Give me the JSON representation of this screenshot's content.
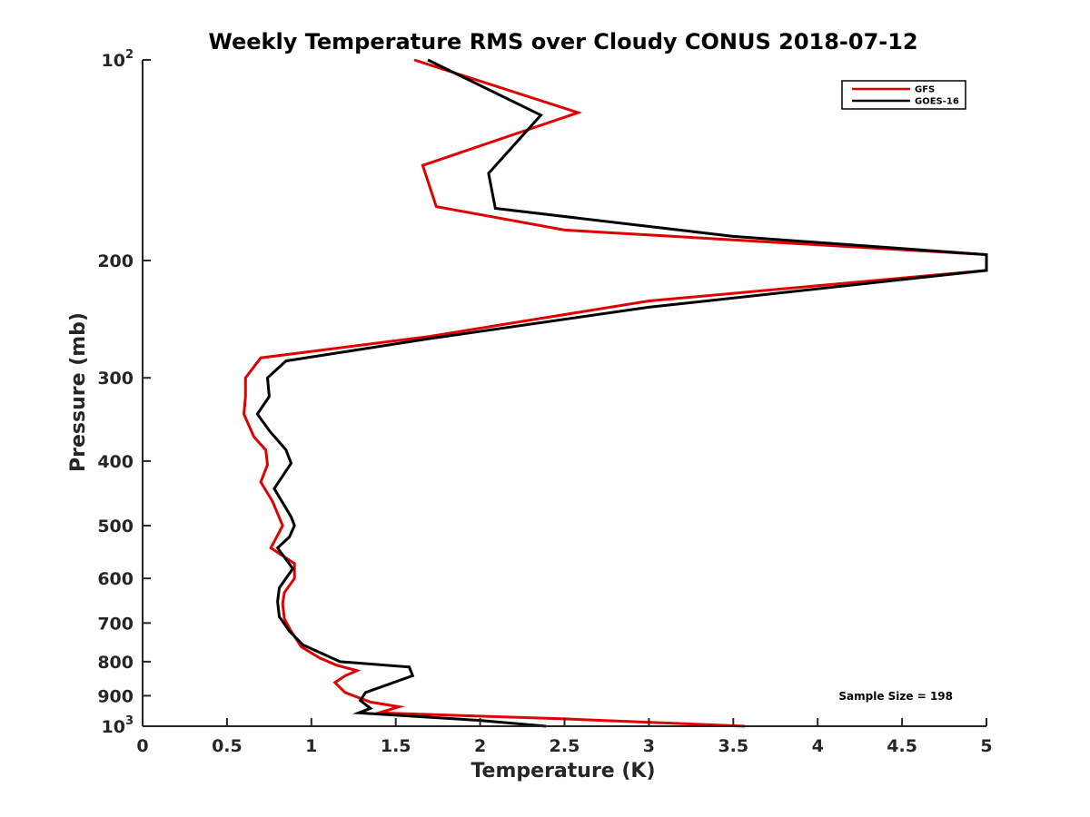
{
  "chart_data": {
    "type": "line",
    "title": "Weekly Temperature RMS over Cloudy CONUS 2018-07-12",
    "xlabel": "Temperature (K)",
    "ylabel": "Pressure (mb)",
    "xlim": [
      0,
      5
    ],
    "ylim": [
      100,
      1000
    ],
    "y_scale": "log",
    "y_reversed": true,
    "grid": false,
    "legend_position": "top-right",
    "x_ticks": [
      {
        "value": 0,
        "label": "0"
      },
      {
        "value": 0.5,
        "label": "0.5"
      },
      {
        "value": 1,
        "label": "1"
      },
      {
        "value": 1.5,
        "label": "1.5"
      },
      {
        "value": 2,
        "label": "2"
      },
      {
        "value": 2.5,
        "label": "2.5"
      },
      {
        "value": 3,
        "label": "3"
      },
      {
        "value": 3.5,
        "label": "3.5"
      },
      {
        "value": 4,
        "label": "4"
      },
      {
        "value": 4.5,
        "label": "4.5"
      },
      {
        "value": 5,
        "label": "5"
      }
    ],
    "y_ticks": [
      {
        "value": 100,
        "label": "10",
        "exponent": "2"
      },
      {
        "value": 200,
        "label": "200"
      },
      {
        "value": 300,
        "label": "300"
      },
      {
        "value": 400,
        "label": "400"
      },
      {
        "value": 500,
        "label": "500"
      },
      {
        "value": 600,
        "label": "600"
      },
      {
        "value": 700,
        "label": "700"
      },
      {
        "value": 800,
        "label": "800"
      },
      {
        "value": 900,
        "label": "900"
      },
      {
        "value": 1000,
        "label": "10",
        "exponent": "3"
      }
    ],
    "series": [
      {
        "name": "GFS",
        "color": "#e00000",
        "points": [
          {
            "x": 1.61,
            "y": 100
          },
          {
            "x": 2.58,
            "y": 120
          },
          {
            "x": 1.66,
            "y": 144
          },
          {
            "x": 1.74,
            "y": 166
          },
          {
            "x": 2.5,
            "y": 180
          },
          {
            "x": 5.0,
            "y": 196
          },
          {
            "x": 5.0,
            "y": 207
          },
          {
            "x": 3.0,
            "y": 230
          },
          {
            "x": 1.7,
            "y": 260
          },
          {
            "x": 0.7,
            "y": 280
          },
          {
            "x": 0.61,
            "y": 300
          },
          {
            "x": 0.61,
            "y": 320
          },
          {
            "x": 0.6,
            "y": 340
          },
          {
            "x": 0.66,
            "y": 368
          },
          {
            "x": 0.73,
            "y": 385
          },
          {
            "x": 0.74,
            "y": 405
          },
          {
            "x": 0.7,
            "y": 430
          },
          {
            "x": 0.77,
            "y": 460
          },
          {
            "x": 0.83,
            "y": 500
          },
          {
            "x": 0.76,
            "y": 540
          },
          {
            "x": 0.9,
            "y": 570
          },
          {
            "x": 0.9,
            "y": 600
          },
          {
            "x": 0.84,
            "y": 630
          },
          {
            "x": 0.83,
            "y": 655
          },
          {
            "x": 0.84,
            "y": 690
          },
          {
            "x": 0.88,
            "y": 720
          },
          {
            "x": 0.94,
            "y": 760
          },
          {
            "x": 1.05,
            "y": 790
          },
          {
            "x": 1.15,
            "y": 810
          },
          {
            "x": 1.27,
            "y": 825
          },
          {
            "x": 1.2,
            "y": 840
          },
          {
            "x": 1.14,
            "y": 860
          },
          {
            "x": 1.2,
            "y": 890
          },
          {
            "x": 1.35,
            "y": 920
          },
          {
            "x": 1.52,
            "y": 935
          },
          {
            "x": 1.4,
            "y": 955
          },
          {
            "x": 2.5,
            "y": 975
          },
          {
            "x": 3.57,
            "y": 1000
          }
        ]
      },
      {
        "name": "GOES-16",
        "color": "#000000",
        "points": [
          {
            "x": 1.69,
            "y": 100
          },
          {
            "x": 2.36,
            "y": 121
          },
          {
            "x": 2.05,
            "y": 148
          },
          {
            "x": 2.09,
            "y": 167
          },
          {
            "x": 3.5,
            "y": 184
          },
          {
            "x": 5.0,
            "y": 196
          },
          {
            "x": 5.0,
            "y": 207
          },
          {
            "x": 3.0,
            "y": 235
          },
          {
            "x": 1.7,
            "y": 262
          },
          {
            "x": 0.85,
            "y": 283
          },
          {
            "x": 0.74,
            "y": 300
          },
          {
            "x": 0.75,
            "y": 320
          },
          {
            "x": 0.68,
            "y": 340
          },
          {
            "x": 0.75,
            "y": 360
          },
          {
            "x": 0.85,
            "y": 385
          },
          {
            "x": 0.88,
            "y": 403
          },
          {
            "x": 0.78,
            "y": 440
          },
          {
            "x": 0.88,
            "y": 485
          },
          {
            "x": 0.9,
            "y": 500
          },
          {
            "x": 0.87,
            "y": 520
          },
          {
            "x": 0.8,
            "y": 540
          },
          {
            "x": 0.89,
            "y": 580
          },
          {
            "x": 0.81,
            "y": 620
          },
          {
            "x": 0.8,
            "y": 650
          },
          {
            "x": 0.81,
            "y": 685
          },
          {
            "x": 0.87,
            "y": 720
          },
          {
            "x": 0.95,
            "y": 755
          },
          {
            "x": 1.17,
            "y": 800
          },
          {
            "x": 1.58,
            "y": 815
          },
          {
            "x": 1.6,
            "y": 840
          },
          {
            "x": 1.32,
            "y": 890
          },
          {
            "x": 1.29,
            "y": 915
          },
          {
            "x": 1.35,
            "y": 940
          },
          {
            "x": 1.28,
            "y": 955
          },
          {
            "x": 2.0,
            "y": 980
          },
          {
            "x": 2.39,
            "y": 1000
          }
        ]
      }
    ],
    "annotations": [
      {
        "text": "Sample Size = 198"
      }
    ]
  }
}
